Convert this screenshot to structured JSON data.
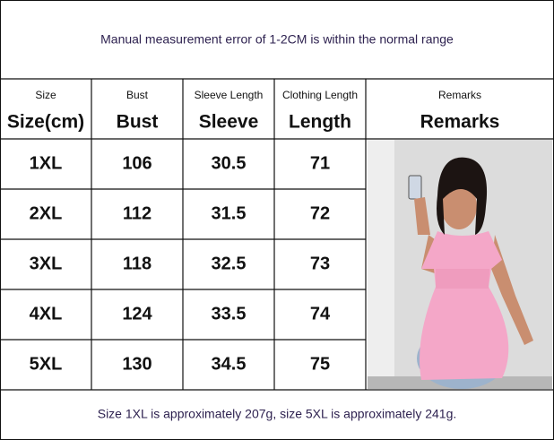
{
  "header": {
    "note": "Manual measurement error of 1-2CM is within the normal range"
  },
  "table": {
    "columns": [
      {
        "label": "Size",
        "title": "Size(cm)"
      },
      {
        "label": "Bust",
        "title": "Bust"
      },
      {
        "label": "Sleeve Length",
        "title": "Sleeve"
      },
      {
        "label": "Clothing Length",
        "title": "Length"
      },
      {
        "label": "Remarks",
        "title": "Remarks"
      }
    ],
    "rows": [
      [
        "1XL",
        106,
        30.5,
        71
      ],
      [
        "2XL",
        112,
        31.5,
        72
      ],
      [
        "3XL",
        118,
        32.5,
        73
      ],
      [
        "4XL",
        124,
        33.5,
        74
      ],
      [
        "5XL",
        130,
        34.5,
        75
      ]
    ]
  },
  "footer": {
    "note": "Size 1XL is approximately 207g, size 5XL is approximately 241g."
  }
}
